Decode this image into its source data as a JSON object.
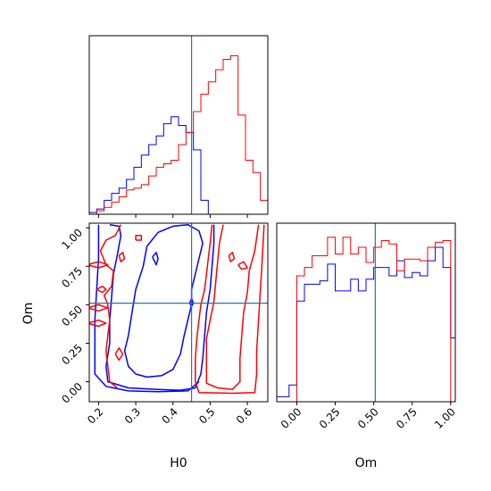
{
  "chart_data": [
    {
      "type": "histogram",
      "panel": "H0 marginal",
      "x_range": [
        0.175,
        0.655
      ],
      "bins": [
        0.175,
        0.195,
        0.215,
        0.235,
        0.255,
        0.275,
        0.295,
        0.315,
        0.335,
        0.355,
        0.375,
        0.395,
        0.415,
        0.435,
        0.455,
        0.475,
        0.495,
        0.515,
        0.535,
        0.555,
        0.575,
        0.595,
        0.615,
        0.635,
        0.655
      ],
      "truth": 0.45,
      "series": [
        {
          "color": "#0000ff",
          "values": [
            0.01,
            0.03,
            0.08,
            0.12,
            0.15,
            0.2,
            0.27,
            0.34,
            0.4,
            0.45,
            0.52,
            0.56,
            0.51,
            0.47,
            0.37,
            0.08,
            0.0,
            0.0,
            0.0,
            0.0,
            0.0,
            0.0,
            0.0,
            0.0
          ]
        },
        {
          "color": "#ff0000",
          "values": [
            0.0,
            0.02,
            0.04,
            0.07,
            0.1,
            0.14,
            0.15,
            0.17,
            0.22,
            0.27,
            0.29,
            0.31,
            0.4,
            0.47,
            0.59,
            0.69,
            0.76,
            0.83,
            0.89,
            0.91,
            0.57,
            0.31,
            0.24,
            0.08
          ]
        }
      ]
    },
    {
      "type": "contour",
      "panel": "H0 vs Om",
      "x_ticks": [
        "0.2",
        "0.3",
        "0.4",
        "0.5",
        "0.6"
      ],
      "y_ticks": [
        "0.00",
        "0.25",
        "0.50",
        "0.75",
        "1.00"
      ],
      "xlim": [
        0.175,
        0.655
      ],
      "ylim": [
        -0.13,
        1.03
      ],
      "xlabel": "H0",
      "ylabel": "Om",
      "truth": [
        0.45,
        0.51
      ],
      "series": [
        {
          "color": "#0000ff",
          "contours": [
            [
              [
                0.4,
                1.01
              ],
              [
                0.44,
                1.02
              ],
              [
                0.47,
                0.98
              ],
              [
                0.48,
                0.9
              ],
              [
                0.47,
                0.8
              ],
              [
                0.46,
                0.7
              ],
              [
                0.45,
                0.6
              ],
              [
                0.45,
                0.5
              ],
              [
                0.44,
                0.4
              ],
              [
                0.43,
                0.3
              ],
              [
                0.42,
                0.18
              ],
              [
                0.4,
                0.08
              ],
              [
                0.37,
                0.04
              ],
              [
                0.33,
                0.03
              ],
              [
                0.3,
                0.05
              ],
              [
                0.28,
                0.1
              ],
              [
                0.27,
                0.2
              ],
              [
                0.28,
                0.3
              ],
              [
                0.29,
                0.45
              ],
              [
                0.3,
                0.6
              ],
              [
                0.32,
                0.75
              ],
              [
                0.33,
                0.88
              ],
              [
                0.36,
                0.97
              ],
              [
                0.4,
                1.01
              ]
            ],
            [
              [
                0.23,
                1.02
              ],
              [
                0.255,
                1.01
              ],
              [
                0.26,
                0.95
              ],
              [
                0.25,
                0.82
              ],
              [
                0.24,
                0.7
              ],
              [
                0.235,
                0.55
              ],
              [
                0.23,
                0.4
              ],
              [
                0.23,
                0.25
              ],
              [
                0.22,
                0.1
              ],
              [
                0.225,
                0.0
              ],
              [
                0.28,
                -0.04
              ],
              [
                0.36,
                -0.05
              ],
              [
                0.42,
                -0.055
              ],
              [
                0.46,
                -0.04
              ],
              [
                0.475,
                0.05
              ],
              [
                0.48,
                0.15
              ],
              [
                0.485,
                0.3
              ],
              [
                0.49,
                0.45
              ],
              [
                0.5,
                0.6
              ],
              [
                0.505,
                0.75
              ],
              [
                0.51,
                0.9
              ],
              [
                0.51,
                1.02
              ]
            ],
            [
              [
                0.2,
                1.02
              ],
              [
                0.2,
                0.8
              ],
              [
                0.195,
                0.6
              ],
              [
                0.19,
                0.4
              ],
              [
                0.19,
                0.2
              ],
              [
                0.19,
                0.05
              ],
              [
                0.22,
                -0.03
              ],
              [
                0.28,
                -0.06
              ],
              [
                0.36,
                -0.065
              ],
              [
                0.44,
                -0.06
              ],
              [
                0.47,
                0.0
              ]
            ],
            [
              [
                0.345,
                0.81
              ],
              [
                0.355,
                0.84
              ],
              [
                0.36,
                0.8
              ],
              [
                0.355,
                0.76
              ],
              [
                0.345,
                0.81
              ]
            ],
            [
              [
                0.445,
                0.51
              ],
              [
                0.45,
                0.54
              ],
              [
                0.455,
                0.51
              ],
              [
                0.45,
                0.49
              ],
              [
                0.445,
                0.51
              ]
            ]
          ]
        },
        {
          "color": "#ff0000",
          "contours": [
            [
              [
                0.535,
                1.02
              ],
              [
                0.525,
                0.9
              ],
              [
                0.52,
                0.78
              ],
              [
                0.515,
                0.65
              ],
              [
                0.51,
                0.52
              ],
              [
                0.5,
                0.4
              ],
              [
                0.49,
                0.28
              ],
              [
                0.49,
                0.12
              ],
              [
                0.49,
                -0.01
              ],
              [
                0.52,
                -0.04
              ],
              [
                0.56,
                -0.05
              ],
              [
                0.58,
                0.0
              ],
              [
                0.58,
                0.15
              ],
              [
                0.585,
                0.3
              ],
              [
                0.59,
                0.45
              ],
              [
                0.6,
                0.58
              ],
              [
                0.605,
                0.72
              ],
              [
                0.62,
                0.85
              ],
              [
                0.63,
                1.02
              ]
            ],
            [
              [
                0.505,
                1.02
              ],
              [
                0.5,
                0.9
              ],
              [
                0.495,
                0.8
              ],
              [
                0.49,
                0.7
              ],
              [
                0.485,
                0.6
              ],
              [
                0.475,
                0.5
              ],
              [
                0.47,
                0.4
              ],
              [
                0.465,
                0.3
              ],
              [
                0.46,
                0.15
              ],
              [
                0.46,
                0.0
              ],
              [
                0.47,
                -0.07
              ],
              [
                0.56,
                -0.075
              ],
              [
                0.62,
                -0.07
              ],
              [
                0.625,
                0.05
              ],
              [
                0.625,
                0.2
              ],
              [
                0.63,
                0.4
              ],
              [
                0.635,
                0.6
              ],
              [
                0.64,
                0.8
              ],
              [
                0.645,
                1.02
              ]
            ],
            [
              [
                0.3,
                0.92
              ],
              [
                0.3,
                0.95
              ],
              [
                0.315,
                0.95
              ],
              [
                0.315,
                0.92
              ],
              [
                0.3,
                0.92
              ]
            ],
            [
              [
                0.255,
                0.82
              ],
              [
                0.265,
                0.84
              ],
              [
                0.27,
                0.8
              ],
              [
                0.26,
                0.78
              ],
              [
                0.255,
                0.82
              ]
            ],
            [
              [
                0.55,
                0.82
              ],
              [
                0.56,
                0.84
              ],
              [
                0.565,
                0.8
              ],
              [
                0.555,
                0.78
              ],
              [
                0.55,
                0.82
              ]
            ],
            [
              [
                0.575,
                0.76
              ],
              [
                0.59,
                0.78
              ],
              [
                0.6,
                0.74
              ],
              [
                0.585,
                0.73
              ],
              [
                0.575,
                0.76
              ]
            ],
            [
              [
                0.26,
                1.02
              ],
              [
                0.245,
                0.95
              ],
              [
                0.22,
                0.92
              ],
              [
                0.205,
                0.85
              ],
              [
                0.22,
                0.76
              ],
              [
                0.24,
                0.72
              ],
              [
                0.235,
                0.62
              ],
              [
                0.215,
                0.56
              ],
              [
                0.225,
                0.5
              ],
              [
                0.23,
                0.4
              ],
              [
                0.225,
                0.3
              ],
              [
                0.22,
                0.2
              ],
              [
                0.225,
                0.1
              ],
              [
                0.23,
                0.0
              ],
              [
                0.25,
                -0.04
              ]
            ],
            [
              [
                0.17,
                0.76
              ],
              [
                0.2,
                0.78
              ],
              [
                0.225,
                0.76
              ],
              [
                0.2,
                0.74
              ],
              [
                0.17,
                0.76
              ]
            ],
            [
              [
                0.17,
                0.48
              ],
              [
                0.2,
                0.5
              ],
              [
                0.225,
                0.48
              ],
              [
                0.2,
                0.46
              ],
              [
                0.17,
                0.48
              ]
            ],
            [
              [
                0.17,
                0.38
              ],
              [
                0.2,
                0.4
              ],
              [
                0.22,
                0.38
              ],
              [
                0.2,
                0.36
              ],
              [
                0.17,
                0.38
              ]
            ],
            [
              [
                0.195,
                0.6
              ],
              [
                0.21,
                0.62
              ],
              [
                0.22,
                0.6
              ],
              [
                0.21,
                0.58
              ],
              [
                0.195,
                0.6
              ]
            ],
            [
              [
                0.245,
                0.18
              ],
              [
                0.255,
                0.22
              ],
              [
                0.265,
                0.18
              ],
              [
                0.255,
                0.14
              ],
              [
                0.245,
                0.18
              ]
            ]
          ]
        }
      ]
    },
    {
      "type": "histogram",
      "panel": "Om marginal",
      "xlim": [
        -0.13,
        1.03
      ],
      "x_ticks": [
        "0.00",
        "0.25",
        "0.50",
        "0.75",
        "1.00"
      ],
      "xlabel": "Om",
      "bins": [
        -0.13,
        -0.05,
        0.0,
        0.05,
        0.1,
        0.15,
        0.2,
        0.25,
        0.3,
        0.35,
        0.4,
        0.45,
        0.5,
        0.55,
        0.6,
        0.65,
        0.7,
        0.75,
        0.8,
        0.85,
        0.9,
        0.95,
        1.0,
        1.03
      ],
      "truth": 0.51,
      "series": [
        {
          "color": "#0000ff",
          "values": [
            0.03,
            0.1,
            0.6,
            0.7,
            0.7,
            0.72,
            0.82,
            0.66,
            0.66,
            0.73,
            0.66,
            0.73,
            0.8,
            0.8,
            0.75,
            0.84,
            0.74,
            0.77,
            0.75,
            0.84,
            0.92,
            0.8,
            0.38
          ]
        },
        {
          "color": "#ff0000",
          "values": [
            0.0,
            0.0,
            0.75,
            0.8,
            0.87,
            0.87,
            0.98,
            0.88,
            0.98,
            0.88,
            0.92,
            0.83,
            0.92,
            0.96,
            0.94,
            0.78,
            0.85,
            0.85,
            0.84,
            0.92,
            0.95,
            0.96,
            0.0
          ]
        }
      ]
    }
  ]
}
